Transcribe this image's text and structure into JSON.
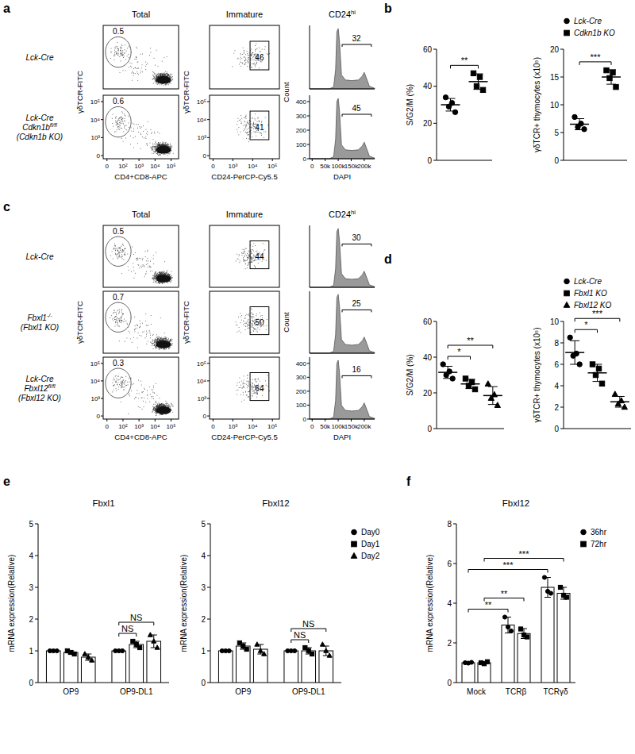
{
  "panel_labels": [
    "a",
    "b",
    "c",
    "d",
    "e",
    "f"
  ],
  "flow_panels": [
    {
      "columns": [
        {
          "title": {
            "text": "Total"
          },
          "x_label": "CD4+CD8-APC",
          "y_label": "γδTCR-FITC",
          "x_ticks": [
            "0",
            "10²",
            "10³",
            "10⁴",
            "10⁵"
          ],
          "y_ticks": [
            "0",
            "10³",
            "10⁴",
            "10⁵"
          ]
        },
        {
          "title": {
            "text": "Immature"
          },
          "x_label": "CD24-PerCP-Cy5.5",
          "y_label": "γδTCR-FITC",
          "x_ticks": [
            "0",
            "10³",
            "10⁴",
            "10⁵"
          ],
          "y_ticks": [
            "0",
            "10³",
            "10⁴",
            "10⁵"
          ]
        },
        {
          "title": {
            "text": "CD24",
            "sup": "hi"
          },
          "x_label": "DAPI",
          "y_label": "Count",
          "x_ticks": [
            "0",
            "50k",
            "100k",
            "150k",
            "200k"
          ],
          "y_ticks": [
            "0",
            "100",
            "200",
            "300",
            "400"
          ]
        }
      ],
      "rows": [
        {
          "label": [
            {
              "text": "Lck-Cre"
            }
          ],
          "gates": [
            0.5,
            46,
            32
          ]
        },
        {
          "label": [
            {
              "text": "Lck-Cre"
            },
            {
              "text": "Cdkn1b",
              "sup": "fl/fl"
            },
            {
              "text": "(Cdkn1b KO)"
            }
          ],
          "gates": [
            0.6,
            41,
            45
          ]
        }
      ]
    },
    {
      "columns": [
        {
          "title": {
            "text": "Total"
          },
          "x_label": "CD4+CD8-APC",
          "y_label": "γδTCR-FITC",
          "x_ticks": [
            "0",
            "10²",
            "10³",
            "10⁴",
            "10⁵"
          ],
          "y_ticks": [
            "0",
            "10³",
            "10⁴",
            "10⁵"
          ]
        },
        {
          "title": {
            "text": "Immature"
          },
          "x_label": "CD24-PerCP-Cy5.5",
          "y_label": "γδTCR-FITC",
          "x_ticks": [
            "0",
            "10³",
            "10⁴",
            "10⁵"
          ],
          "y_ticks": [
            "0",
            "10³",
            "10⁴",
            "10⁵"
          ]
        },
        {
          "title": {
            "text": "CD24",
            "sup": "hi"
          },
          "x_label": "DAPI",
          "y_label": "Count",
          "x_ticks": [
            "0",
            "50k",
            "100k",
            "150k",
            "200k"
          ],
          "y_ticks": [
            "0",
            "100",
            "200",
            "300",
            "400"
          ]
        }
      ],
      "rows": [
        {
          "label": [
            {
              "text": "Lck-Cre"
            }
          ],
          "gates": [
            0.5,
            44,
            30
          ]
        },
        {
          "label": [
            {
              "text": "Fbxl1",
              "sup": "-/-"
            },
            {
              "text": "(Fbxl1 KO)"
            }
          ],
          "gates": [
            0.7,
            50,
            25
          ]
        },
        {
          "label": [
            {
              "text": "Lck-Cre"
            },
            {
              "text": "Fbxl12",
              "sup": "fl/fl"
            },
            {
              "text": "(Fbxl12 KO)"
            }
          ],
          "gates": [
            0.3,
            64,
            16
          ]
        }
      ]
    }
  ],
  "chart_data": [
    {
      "type": "strip",
      "ylabel": "S/G2/M (%)",
      "ylim": [
        0,
        60
      ],
      "yticks": [
        0,
        20,
        40,
        60
      ],
      "series": [
        {
          "marker": "circle",
          "color": "#000000",
          "values": [
            34,
            31,
            29,
            26
          ],
          "mean": 30,
          "error": 3.4
        },
        {
          "marker": "square",
          "color": "#000000",
          "values": [
            47,
            45,
            40,
            38
          ],
          "mean": 42.5,
          "error": 4.2
        }
      ],
      "annotations": [
        {
          "text": "**",
          "from": 0,
          "to": 1
        }
      ]
    },
    {
      "type": "strip",
      "ylabel": "γδTCR+ thymocytes (x10⁵)",
      "ylim": [
        0,
        20
      ],
      "yticks": [
        0,
        5,
        10,
        15,
        20
      ],
      "legend": "top",
      "series": [
        {
          "name": "Lck-Cre",
          "marker": "circle",
          "color": "#000000",
          "values": [
            7.8,
            6.6,
            6.0,
            5.6
          ],
          "mean": 6.5,
          "error": 1.0
        },
        {
          "name": "Cdkn1b KO",
          "marker": "square",
          "color": "#000000",
          "values": [
            16.2,
            15.8,
            14.8,
            13.2
          ],
          "mean": 15.0,
          "error": 1.3
        }
      ],
      "annotations": [
        {
          "text": "***",
          "from": 0,
          "to": 1
        }
      ]
    },
    {
      "type": "strip",
      "ylabel": "S/G2/M (%)",
      "ylim": [
        0,
        60
      ],
      "yticks": [
        0,
        20,
        40,
        60
      ],
      "series": [
        {
          "marker": "circle",
          "color": "#000000",
          "values": [
            36,
            32,
            30,
            28
          ],
          "mean": 31.5,
          "error": 3.4
        },
        {
          "marker": "square",
          "color": "#000000",
          "values": [
            28,
            26,
            24,
            22
          ],
          "mean": 25,
          "error": 2.6
        },
        {
          "marker": "triangle",
          "color": "#000000",
          "values": [
            25,
            19,
            17,
            13
          ],
          "mean": 18.5,
          "error": 5.0
        }
      ],
      "annotations": [
        {
          "text": "*",
          "from": 0,
          "to": 1
        },
        {
          "text": "**",
          "from": 0,
          "to": 2
        }
      ]
    },
    {
      "type": "strip",
      "ylabel": "γδTCR+ thymocytes (x10⁵)",
      "ylim": [
        0,
        10
      ],
      "yticks": [
        0,
        2,
        4,
        6,
        8,
        10
      ],
      "legend": "top",
      "series": [
        {
          "name": "Lck-Cre",
          "marker": "circle",
          "color": "#000000",
          "values": [
            8.5,
            7.0,
            6.8,
            6.0
          ],
          "mean": 7.1,
          "error": 1.1
        },
        {
          "name": "Fbxl1 KO",
          "marker": "square",
          "color": "#000000",
          "values": [
            6.0,
            5.6,
            5.0,
            4.2
          ],
          "mean": 5.2,
          "error": 0.8
        },
        {
          "name": "Fbxl12 KO",
          "marker": "triangle",
          "color": "#000000",
          "values": [
            3.2,
            2.6,
            2.3,
            2.0
          ],
          "mean": 2.5,
          "error": 0.5
        }
      ],
      "annotations": [
        {
          "text": "*",
          "from": 0,
          "to": 1
        },
        {
          "text": "***",
          "from": 0,
          "to": 2
        }
      ]
    },
    {
      "type": "bar",
      "title": "Fbxl1",
      "ylabel": "mRNA expression(Relative)",
      "categories": [
        "OP9",
        "OP9-DL1"
      ],
      "ylim": [
        0,
        5
      ],
      "yticks": [
        0,
        1,
        2,
        3,
        4,
        5
      ],
      "series": [
        {
          "marker": "circle",
          "color": "#ffffff",
          "values": [
            1.0,
            1.0
          ],
          "error": [
            0.02,
            0.02
          ],
          "points": [
            [
              1.0,
              1.0,
              1.0
            ],
            [
              1.0,
              1.0,
              1.0
            ]
          ]
        },
        {
          "marker": "square",
          "color": "#ffffff",
          "values": [
            0.95,
            1.2
          ],
          "error": [
            0.05,
            0.1
          ],
          "points": [
            [
              1.0,
              0.95,
              0.9
            ],
            [
              1.3,
              1.2,
              1.1
            ]
          ]
        },
        {
          "marker": "triangle",
          "color": "#ffffff",
          "values": [
            0.8,
            1.3
          ],
          "error": [
            0.1,
            0.2
          ],
          "points": [
            [
              0.9,
              0.8,
              0.7
            ],
            [
              1.5,
              1.3,
              1.1
            ]
          ]
        }
      ],
      "annotations": [
        {
          "text": "NS",
          "from": [
            1,
            0
          ],
          "to": [
            1,
            1
          ]
        },
        {
          "text": "NS",
          "from": [
            1,
            0
          ],
          "to": [
            1,
            2
          ]
        }
      ]
    },
    {
      "type": "bar",
      "title": "Fbxl12",
      "ylabel": "mRNA expression(Relative)",
      "categories": [
        "OP9",
        "OP9-DL1"
      ],
      "ylim": [
        0,
        5
      ],
      "yticks": [
        0,
        1,
        2,
        3,
        4,
        5
      ],
      "legend": "right",
      "series": [
        {
          "name": "Day0",
          "marker": "circle",
          "color": "#ffffff",
          "values": [
            1.0,
            1.0
          ],
          "error": [
            0.02,
            0.02
          ],
          "points": [
            [
              1.0,
              1.0,
              1.0
            ],
            [
              1.0,
              1.0,
              1.0
            ]
          ]
        },
        {
          "name": "Day1",
          "marker": "square",
          "color": "#ffffff",
          "values": [
            1.15,
            1.0
          ],
          "error": [
            0.1,
            0.1
          ],
          "points": [
            [
              1.25,
              1.15,
              1.05
            ],
            [
              1.1,
              1.0,
              0.9
            ]
          ]
        },
        {
          "name": "Day2",
          "marker": "triangle",
          "color": "#ffffff",
          "values": [
            1.05,
            1.0
          ],
          "error": [
            0.15,
            0.15
          ],
          "points": [
            [
              1.2,
              1.0,
              0.9
            ],
            [
              1.2,
              1.0,
              0.85
            ]
          ]
        }
      ],
      "annotations": [
        {
          "text": "NS",
          "from": [
            1,
            0
          ],
          "to": [
            1,
            1
          ]
        },
        {
          "text": "NS",
          "from": [
            1,
            0
          ],
          "to": [
            1,
            2
          ]
        }
      ]
    },
    {
      "type": "bar",
      "title": "Fbxl12",
      "ylabel": "mRNA expression(Relative)",
      "categories": [
        "Mock",
        "TCRβ",
        "TCRγδ"
      ],
      "ylim": [
        0,
        8
      ],
      "yticks": [
        0,
        2,
        4,
        6,
        8
      ],
      "legend": "top-right",
      "series": [
        {
          "name": "36hr",
          "marker": "circle",
          "color": "#ffffff",
          "values": [
            1.0,
            2.9,
            4.8
          ],
          "error": [
            0.03,
            0.4,
            0.5
          ],
          "points": [
            [
              1.0,
              0.98,
              1.02
            ],
            [
              3.3,
              2.8,
              2.6
            ],
            [
              5.3,
              4.6,
              4.5
            ]
          ]
        },
        {
          "name": "72hr",
          "marker": "square",
          "color": "#ffffff",
          "values": [
            1.0,
            2.47,
            4.5
          ],
          "error": [
            0.05,
            0.25,
            0.3
          ],
          "points": [
            [
              1.0,
              0.95,
              1.05
            ],
            [
              2.7,
              2.4,
              2.3
            ],
            [
              4.8,
              4.4,
              4.3
            ]
          ]
        }
      ],
      "annotations": [
        {
          "text": "**",
          "from": [
            0,
            0
          ],
          "to": [
            1,
            0
          ]
        },
        {
          "text": "**",
          "from": [
            0,
            1
          ],
          "to": [
            1,
            1
          ]
        },
        {
          "text": "***",
          "from": [
            0,
            0
          ],
          "to": [
            2,
            0
          ]
        },
        {
          "text": "***",
          "from": [
            0,
            1
          ],
          "to": [
            2,
            1
          ]
        }
      ]
    }
  ]
}
